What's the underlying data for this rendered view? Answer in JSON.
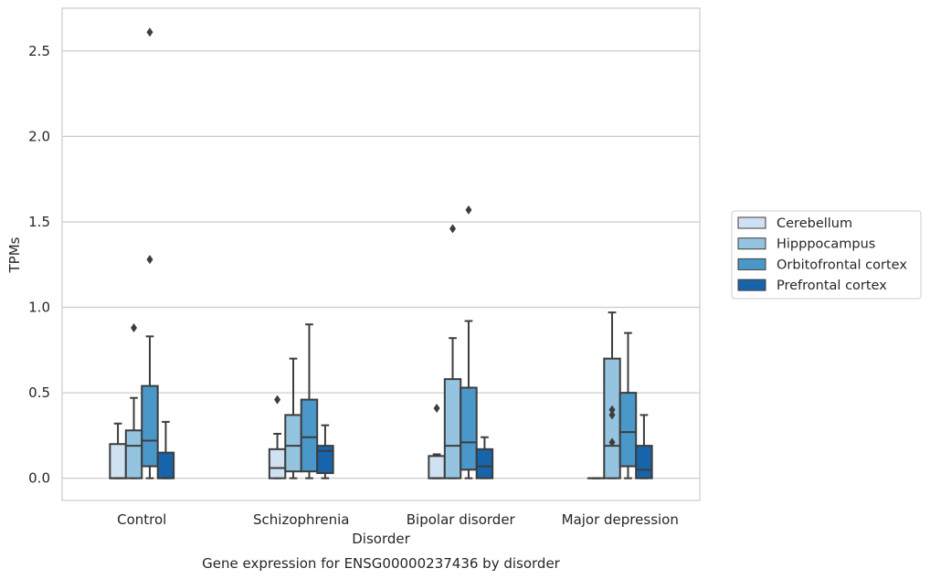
{
  "chart_data": {
    "type": "box",
    "title": "",
    "caption": "Gene expression for ENSG00000237436 by disorder",
    "xlabel": "Disorder",
    "ylabel": "TPMs",
    "ylim": [
      -0.13,
      2.75
    ],
    "yticks": [
      0.0,
      0.5,
      1.0,
      1.5,
      2.0,
      2.5
    ],
    "ytick_labels": [
      "0.0",
      "0.5",
      "1.0",
      "1.5",
      "2.0",
      "2.5"
    ],
    "grid": "horizontal",
    "legend_position": "right",
    "categories": [
      "Control",
      "Schizophrenia",
      "Bipolar disorder",
      "Major depression"
    ],
    "series": [
      {
        "name": "Cerebellum",
        "color": "#d0e1f2",
        "boxes": [
          {
            "min": 0.0,
            "q1": 0.0,
            "median": 0.0,
            "q3": 0.2,
            "max": 0.32,
            "outliers": []
          },
          {
            "min": 0.0,
            "q1": 0.0,
            "median": 0.06,
            "q3": 0.17,
            "max": 0.26,
            "outliers": [
              0.46
            ]
          },
          {
            "min": 0.0,
            "q1": 0.0,
            "median": 0.0,
            "q3": 0.13,
            "max": 0.14,
            "outliers": [
              0.41
            ]
          },
          {
            "min": 0.0,
            "q1": 0.0,
            "median": 0.0,
            "q3": 0.0,
            "max": 0.0,
            "outliers": []
          }
        ]
      },
      {
        "name": "Hipppocampus",
        "color": "#94c4df",
        "boxes": [
          {
            "min": 0.0,
            "q1": 0.0,
            "median": 0.19,
            "q3": 0.28,
            "max": 0.47,
            "outliers": [
              0.88
            ]
          },
          {
            "min": 0.0,
            "q1": 0.04,
            "median": 0.19,
            "q3": 0.37,
            "max": 0.7,
            "outliers": []
          },
          {
            "min": 0.0,
            "q1": 0.0,
            "median": 0.19,
            "q3": 0.58,
            "max": 0.82,
            "outliers": [
              1.46
            ]
          },
          {
            "min": 0.0,
            "q1": 0.0,
            "median": 0.19,
            "q3": 0.7,
            "max": 0.97,
            "outliers": [
              0.21,
              0.37,
              0.4
            ]
          }
        ]
      },
      {
        "name": "Orbitofrontal cortex",
        "color": "#4a98c9",
        "boxes": [
          {
            "min": 0.0,
            "q1": 0.07,
            "median": 0.22,
            "q3": 0.54,
            "max": 0.83,
            "outliers": [
              1.28,
              2.61
            ]
          },
          {
            "min": 0.0,
            "q1": 0.04,
            "median": 0.24,
            "q3": 0.46,
            "max": 0.9,
            "outliers": []
          },
          {
            "min": 0.0,
            "q1": 0.05,
            "median": 0.21,
            "q3": 0.53,
            "max": 0.92,
            "outliers": [
              1.57
            ]
          },
          {
            "min": 0.0,
            "q1": 0.07,
            "median": 0.27,
            "q3": 0.5,
            "max": 0.85,
            "outliers": []
          }
        ]
      },
      {
        "name": "Prefrontal cortex",
        "color": "#1764ab",
        "boxes": [
          {
            "min": 0.0,
            "q1": 0.0,
            "median": 0.0,
            "q3": 0.15,
            "max": 0.33,
            "outliers": []
          },
          {
            "min": 0.0,
            "q1": 0.03,
            "median": 0.16,
            "q3": 0.19,
            "max": 0.31,
            "outliers": []
          },
          {
            "min": 0.0,
            "q1": 0.0,
            "median": 0.07,
            "q3": 0.17,
            "max": 0.24,
            "outliers": []
          },
          {
            "min": 0.0,
            "q1": 0.0,
            "median": 0.05,
            "q3": 0.19,
            "max": 0.37,
            "outliers": []
          }
        ]
      }
    ]
  }
}
